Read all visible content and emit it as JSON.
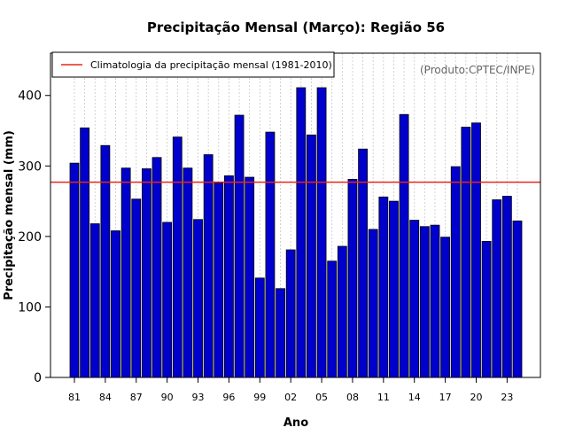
{
  "chart_data": {
    "type": "bar",
    "title": "Precipitação Mensal (Março): Região 56",
    "xlabel": "Ano",
    "ylabel": "Precipitação mensal (mm)",
    "source_note": "(Produto:CPTEC/INPE)",
    "legend": {
      "label": "Climatologia da precipitação mensal (1981-2010)",
      "position": "top-left"
    },
    "climatology": 277,
    "ylim": [
      0,
      460
    ],
    "yticks": [
      0,
      100,
      200,
      300,
      400
    ],
    "xtick_labels": [
      "81",
      "84",
      "87",
      "90",
      "93",
      "96",
      "99",
      "02",
      "05",
      "08",
      "11",
      "14",
      "17",
      "20",
      "23"
    ],
    "xtick_step": 3,
    "categories": [
      "1981",
      "1982",
      "1983",
      "1984",
      "1985",
      "1986",
      "1987",
      "1988",
      "1989",
      "1990",
      "1991",
      "1992",
      "1993",
      "1994",
      "1995",
      "1996",
      "1997",
      "1998",
      "1999",
      "2000",
      "2001",
      "2002",
      "2003",
      "2004",
      "2005",
      "2006",
      "2007",
      "2008",
      "2009",
      "2010",
      "2011",
      "2012",
      "2013",
      "2014",
      "2015",
      "2016",
      "2017",
      "2018",
      "2019",
      "2020",
      "2021",
      "2022",
      "2023",
      "2024"
    ],
    "values": [
      304,
      354,
      218,
      329,
      208,
      297,
      253,
      296,
      312,
      220,
      341,
      297,
      224,
      316,
      276,
      286,
      372,
      284,
      141,
      348,
      126,
      181,
      411,
      344,
      411,
      165,
      186,
      281,
      324,
      210,
      256,
      250,
      373,
      223,
      214,
      216,
      199,
      299,
      355,
      361,
      193,
      252,
      257,
      222
    ],
    "colors": {
      "bar_fill": "#0000cc",
      "bar_stroke": "#000000",
      "climatology_line": "#e8261a",
      "grid": "#c8c8c8"
    }
  }
}
